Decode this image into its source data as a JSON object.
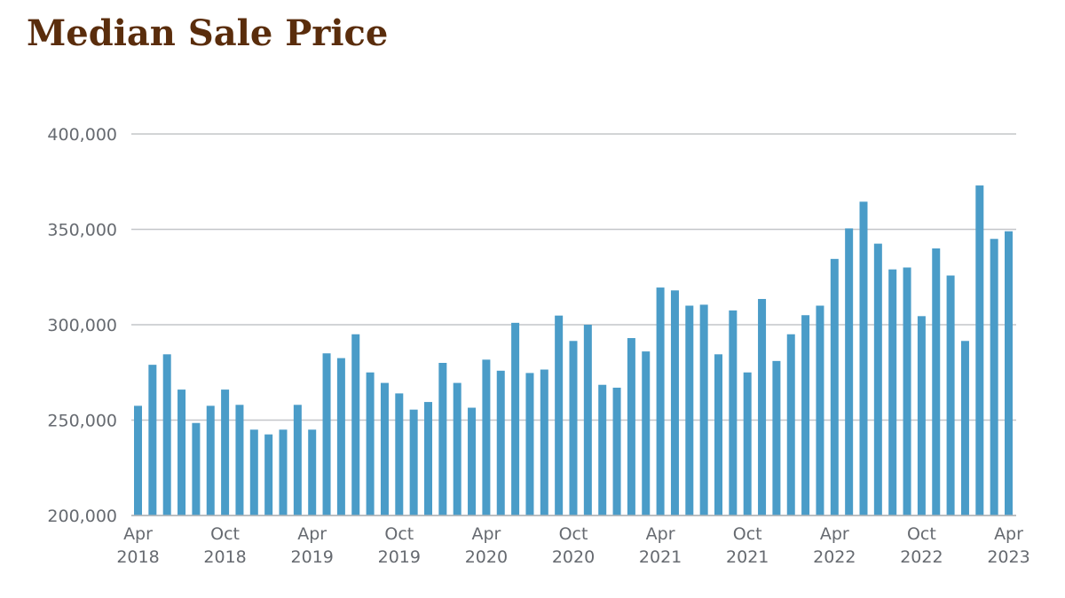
{
  "chart_data": {
    "type": "bar",
    "title": "Median Sale Price",
    "xlabel": "",
    "ylabel": "",
    "ylim": [
      200000,
      400000
    ],
    "yticks": [
      {
        "value": 200000,
        "label": "200,000"
      },
      {
        "value": 250000,
        "label": "250,000"
      },
      {
        "value": 300000,
        "label": "300,000"
      },
      {
        "value": 350000,
        "label": "350,000"
      },
      {
        "value": 400000,
        "label": "400,000"
      }
    ],
    "xtick_labels": [
      {
        "index": 0,
        "month": "Apr",
        "year": "2018"
      },
      {
        "index": 6,
        "month": "Oct",
        "year": "2018"
      },
      {
        "index": 12,
        "month": "Apr",
        "year": "2019"
      },
      {
        "index": 18,
        "month": "Oct",
        "year": "2019"
      },
      {
        "index": 24,
        "month": "Apr",
        "year": "2020"
      },
      {
        "index": 30,
        "month": "Oct",
        "year": "2020"
      },
      {
        "index": 36,
        "month": "Apr",
        "year": "2021"
      },
      {
        "index": 42,
        "month": "Oct",
        "year": "2021"
      },
      {
        "index": 48,
        "month": "Apr",
        "year": "2022"
      },
      {
        "index": 54,
        "month": "Oct",
        "year": "2022"
      },
      {
        "index": 60,
        "month": "Apr",
        "year": "2023"
      }
    ],
    "categories": [
      "Apr 2018",
      "May 2018",
      "Jun 2018",
      "Jul 2018",
      "Aug 2018",
      "Sep 2018",
      "Oct 2018",
      "Nov 2018",
      "Dec 2018",
      "Jan 2019",
      "Feb 2019",
      "Mar 2019",
      "Apr 2019",
      "May 2019",
      "Jun 2019",
      "Jul 2019",
      "Aug 2019",
      "Sep 2019",
      "Oct 2019",
      "Nov 2019",
      "Dec 2019",
      "Jan 2020",
      "Feb 2020",
      "Mar 2020",
      "Apr 2020",
      "May 2020",
      "Jun 2020",
      "Jul 2020",
      "Aug 2020",
      "Sep 2020",
      "Oct 2020",
      "Nov 2020",
      "Dec 2020",
      "Jan 2021",
      "Feb 2021",
      "Mar 2021",
      "Apr 2021",
      "May 2021",
      "Jun 2021",
      "Jul 2021",
      "Aug 2021",
      "Sep 2021",
      "Oct 2021",
      "Nov 2021",
      "Dec 2021",
      "Jan 2022",
      "Feb 2022",
      "Mar 2022",
      "Apr 2022",
      "May 2022",
      "Jun 2022",
      "Jul 2022",
      "Aug 2022",
      "Sep 2022",
      "Oct 2022",
      "Nov 2022",
      "Dec 2022",
      "Jan 2023",
      "Feb 2023",
      "Mar 2023",
      "Apr 2023"
    ],
    "values": [
      257500,
      279000,
      284500,
      266000,
      248500,
      257500,
      266000,
      258000,
      245000,
      242500,
      245000,
      258000,
      245000,
      285000,
      282500,
      295000,
      275000,
      269500,
      264000,
      255500,
      259500,
      280000,
      269500,
      256500,
      281700,
      275900,
      301000,
      274700,
      276500,
      304800,
      291500,
      300000,
      268500,
      267000,
      293000,
      286000,
      319500,
      318000,
      310000,
      310500,
      284500,
      307500,
      275000,
      313500,
      281000,
      295000,
      305000,
      310000,
      334500,
      350500,
      364500,
      342500,
      329000,
      330000,
      304500,
      340000,
      325800,
      291500,
      373000,
      345000,
      349000
    ],
    "bar_color": "#4a9cc8",
    "grid": true,
    "legend": "none"
  }
}
